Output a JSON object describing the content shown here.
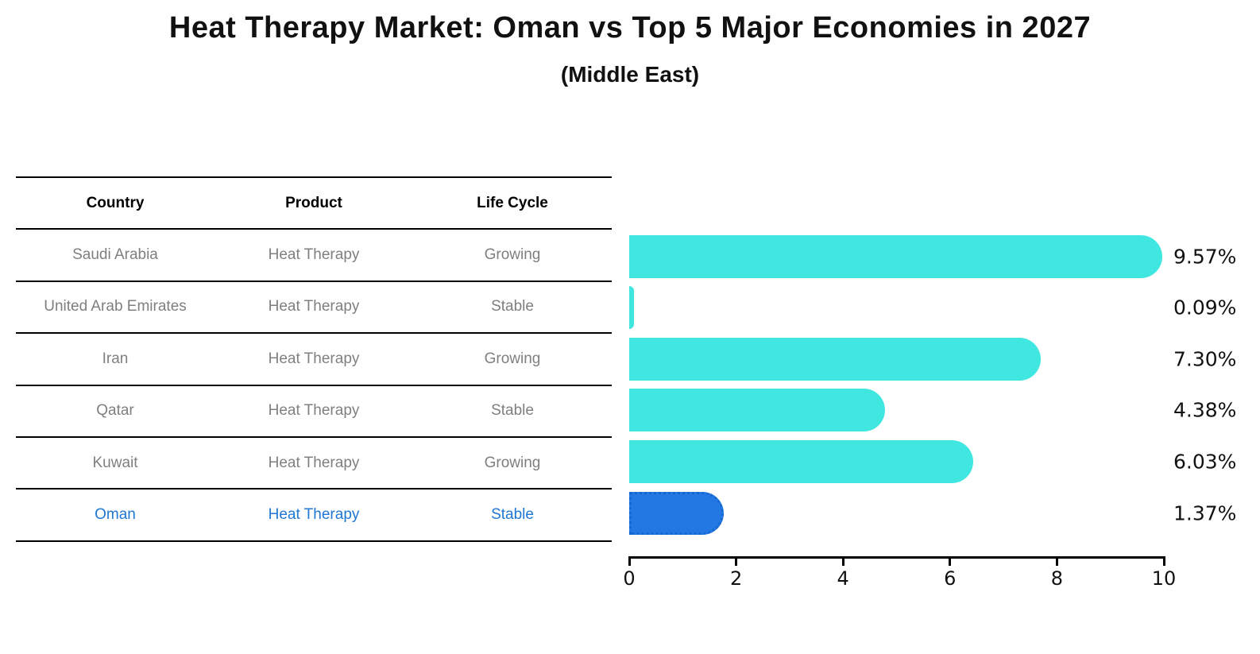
{
  "title": "Heat Therapy Market: Oman vs Top 5 Major Economies in 2027",
  "subtitle": "(Middle East)",
  "table": {
    "headers": [
      "Country",
      "Product",
      "Life Cycle"
    ],
    "rows": [
      {
        "country": "Saudi Arabia",
        "product": "Heat Therapy",
        "life_cycle": "Growing",
        "highlight": false
      },
      {
        "country": "United Arab Emirates",
        "product": "Heat Therapy",
        "life_cycle": "Stable",
        "highlight": false
      },
      {
        "country": "Iran",
        "product": "Heat Therapy",
        "life_cycle": "Growing",
        "highlight": false
      },
      {
        "country": "Qatar",
        "product": "Heat Therapy",
        "life_cycle": "Stable",
        "highlight": false
      },
      {
        "country": "Kuwait",
        "product": "Heat Therapy",
        "life_cycle": "Growing",
        "highlight": false
      },
      {
        "country": "Oman",
        "product": "Heat Therapy",
        "life_cycle": "Stable",
        "highlight": true
      }
    ]
  },
  "chart_data": {
    "type": "bar",
    "orientation": "horizontal",
    "title": "Heat Therapy Market: Oman vs Top 5 Major Economies in 2027",
    "subtitle": "(Middle East)",
    "categories": [
      "Saudi Arabia",
      "United Arab Emirates",
      "Iran",
      "Qatar",
      "Kuwait",
      "Oman"
    ],
    "values": [
      9.57,
      0.09,
      7.3,
      4.38,
      6.03,
      1.37
    ],
    "value_labels": [
      "9.57%",
      "0.09%",
      "7.30%",
      "4.38%",
      "6.03%",
      "1.37%"
    ],
    "xlim": [
      0,
      10
    ],
    "xticks": [
      "0",
      "2",
      "4",
      "6",
      "8",
      "10"
    ],
    "grid": false,
    "legend": false,
    "highlight_index": 5,
    "bar_color": "#40e7e0",
    "highlight_bar_color": "#2478e4",
    "highlight_text_color": "#1e77d2",
    "axis_color": "#000000",
    "label_color": "#111111"
  }
}
